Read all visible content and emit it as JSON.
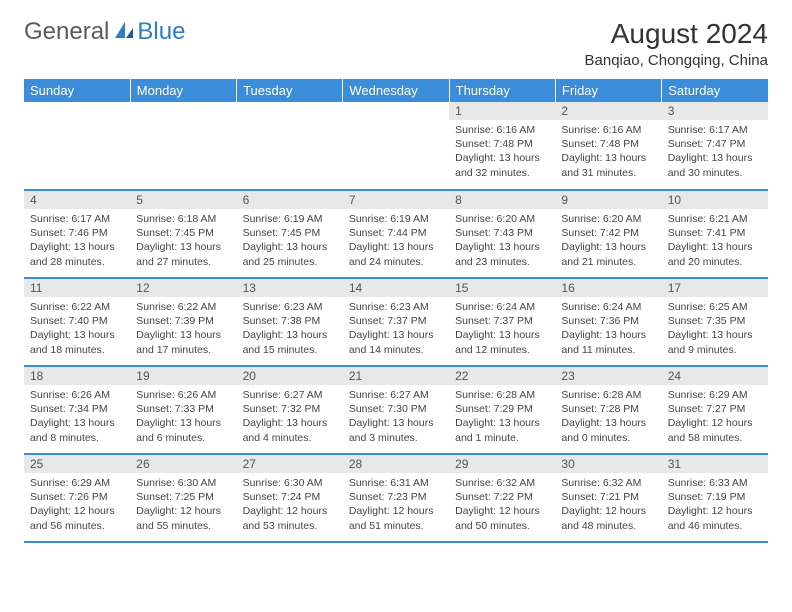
{
  "brand": {
    "general": "General",
    "blue": "Blue"
  },
  "title": "August 2024",
  "location": "Banqiao, Chongqing, China",
  "colors": {
    "header_bg": "#3c8dd9",
    "header_text": "#ffffff",
    "daynum_bg": "#e8e8e8",
    "row_border": "#3c8dd9",
    "logo_blue": "#2d7dc7",
    "logo_gray": "#5a5a5a"
  },
  "weekdays": [
    "Sunday",
    "Monday",
    "Tuesday",
    "Wednesday",
    "Thursday",
    "Friday",
    "Saturday"
  ],
  "weeks": [
    [
      null,
      null,
      null,
      null,
      {
        "n": "1",
        "sr": "6:16 AM",
        "ss": "7:48 PM",
        "dl": "13 hours and 32 minutes."
      },
      {
        "n": "2",
        "sr": "6:16 AM",
        "ss": "7:48 PM",
        "dl": "13 hours and 31 minutes."
      },
      {
        "n": "3",
        "sr": "6:17 AM",
        "ss": "7:47 PM",
        "dl": "13 hours and 30 minutes."
      }
    ],
    [
      {
        "n": "4",
        "sr": "6:17 AM",
        "ss": "7:46 PM",
        "dl": "13 hours and 28 minutes."
      },
      {
        "n": "5",
        "sr": "6:18 AM",
        "ss": "7:45 PM",
        "dl": "13 hours and 27 minutes."
      },
      {
        "n": "6",
        "sr": "6:19 AM",
        "ss": "7:45 PM",
        "dl": "13 hours and 25 minutes."
      },
      {
        "n": "7",
        "sr": "6:19 AM",
        "ss": "7:44 PM",
        "dl": "13 hours and 24 minutes."
      },
      {
        "n": "8",
        "sr": "6:20 AM",
        "ss": "7:43 PM",
        "dl": "13 hours and 23 minutes."
      },
      {
        "n": "9",
        "sr": "6:20 AM",
        "ss": "7:42 PM",
        "dl": "13 hours and 21 minutes."
      },
      {
        "n": "10",
        "sr": "6:21 AM",
        "ss": "7:41 PM",
        "dl": "13 hours and 20 minutes."
      }
    ],
    [
      {
        "n": "11",
        "sr": "6:22 AM",
        "ss": "7:40 PM",
        "dl": "13 hours and 18 minutes."
      },
      {
        "n": "12",
        "sr": "6:22 AM",
        "ss": "7:39 PM",
        "dl": "13 hours and 17 minutes."
      },
      {
        "n": "13",
        "sr": "6:23 AM",
        "ss": "7:38 PM",
        "dl": "13 hours and 15 minutes."
      },
      {
        "n": "14",
        "sr": "6:23 AM",
        "ss": "7:37 PM",
        "dl": "13 hours and 14 minutes."
      },
      {
        "n": "15",
        "sr": "6:24 AM",
        "ss": "7:37 PM",
        "dl": "13 hours and 12 minutes."
      },
      {
        "n": "16",
        "sr": "6:24 AM",
        "ss": "7:36 PM",
        "dl": "13 hours and 11 minutes."
      },
      {
        "n": "17",
        "sr": "6:25 AM",
        "ss": "7:35 PM",
        "dl": "13 hours and 9 minutes."
      }
    ],
    [
      {
        "n": "18",
        "sr": "6:26 AM",
        "ss": "7:34 PM",
        "dl": "13 hours and 8 minutes."
      },
      {
        "n": "19",
        "sr": "6:26 AM",
        "ss": "7:33 PM",
        "dl": "13 hours and 6 minutes."
      },
      {
        "n": "20",
        "sr": "6:27 AM",
        "ss": "7:32 PM",
        "dl": "13 hours and 4 minutes."
      },
      {
        "n": "21",
        "sr": "6:27 AM",
        "ss": "7:30 PM",
        "dl": "13 hours and 3 minutes."
      },
      {
        "n": "22",
        "sr": "6:28 AM",
        "ss": "7:29 PM",
        "dl": "13 hours and 1 minute."
      },
      {
        "n": "23",
        "sr": "6:28 AM",
        "ss": "7:28 PM",
        "dl": "13 hours and 0 minutes."
      },
      {
        "n": "24",
        "sr": "6:29 AM",
        "ss": "7:27 PM",
        "dl": "12 hours and 58 minutes."
      }
    ],
    [
      {
        "n": "25",
        "sr": "6:29 AM",
        "ss": "7:26 PM",
        "dl": "12 hours and 56 minutes."
      },
      {
        "n": "26",
        "sr": "6:30 AM",
        "ss": "7:25 PM",
        "dl": "12 hours and 55 minutes."
      },
      {
        "n": "27",
        "sr": "6:30 AM",
        "ss": "7:24 PM",
        "dl": "12 hours and 53 minutes."
      },
      {
        "n": "28",
        "sr": "6:31 AM",
        "ss": "7:23 PM",
        "dl": "12 hours and 51 minutes."
      },
      {
        "n": "29",
        "sr": "6:32 AM",
        "ss": "7:22 PM",
        "dl": "12 hours and 50 minutes."
      },
      {
        "n": "30",
        "sr": "6:32 AM",
        "ss": "7:21 PM",
        "dl": "12 hours and 48 minutes."
      },
      {
        "n": "31",
        "sr": "6:33 AM",
        "ss": "7:19 PM",
        "dl": "12 hours and 46 minutes."
      }
    ]
  ],
  "labels": {
    "sunrise": "Sunrise:",
    "sunset": "Sunset:",
    "daylight": "Daylight:"
  }
}
